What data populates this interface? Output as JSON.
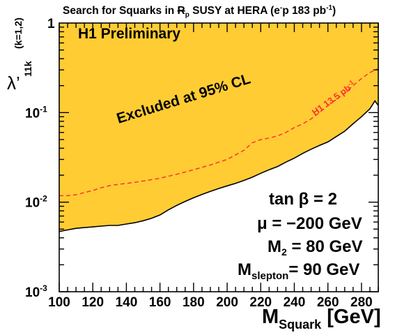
{
  "chart_data": {
    "type": "area",
    "title": {
      "prefix": "Search for Squarks in ",
      "rp_main": "R",
      "rp_sub": "p",
      "middle": " SUSY at HERA (e",
      "minus": "-",
      "after": "p 183 pb",
      "exp": "-1",
      "close": ")"
    },
    "xlabel": {
      "main": "M",
      "sub": "Squark",
      "unit": " [GeV]"
    },
    "ylabel": {
      "main": "λ’",
      "sub": "11k",
      "super": "(k=1,2)"
    },
    "xlim": [
      100,
      290
    ],
    "ylim": [
      0.001,
      1
    ],
    "yscale": "log",
    "x_ticks": [
      100,
      120,
      140,
      160,
      180,
      200,
      220,
      240,
      260,
      280
    ],
    "y_ticks": [
      {
        "value": 0.001,
        "base": "10",
        "exp": "-3"
      },
      {
        "value": 0.01,
        "base": "10",
        "exp": "-2"
      },
      {
        "value": 0.1,
        "base": "10",
        "exp": "-1"
      },
      {
        "value": 1,
        "base": "1",
        "exp": ""
      }
    ],
    "series": [
      {
        "name": "Excluded at 95% CL",
        "style": "filled-region-above",
        "color": "#ffcc33",
        "x": [
          100,
          105,
          110,
          115,
          120,
          125,
          130,
          135,
          140,
          145,
          150,
          155,
          160,
          165,
          170,
          175,
          180,
          185,
          190,
          195,
          200,
          205,
          210,
          215,
          220,
          225,
          230,
          235,
          240,
          245,
          250,
          255,
          260,
          265,
          270,
          275,
          280,
          285,
          288,
          290
        ],
        "y": [
          0.0047,
          0.0049,
          0.0051,
          0.0052,
          0.0053,
          0.0054,
          0.0055,
          0.0055,
          0.0057,
          0.0059,
          0.0062,
          0.0066,
          0.0072,
          0.0082,
          0.0092,
          0.0102,
          0.0112,
          0.0122,
          0.0132,
          0.0142,
          0.0152,
          0.0162,
          0.0175,
          0.019,
          0.021,
          0.023,
          0.025,
          0.028,
          0.031,
          0.035,
          0.039,
          0.043,
          0.047,
          0.054,
          0.062,
          0.075,
          0.09,
          0.11,
          0.135,
          0.12
        ]
      },
      {
        "name": "H1 13.5 pb",
        "name_exp": "-1",
        "style": "dashed",
        "color": "#ff3333",
        "x": [
          100,
          105,
          110,
          115,
          120,
          125,
          130,
          135,
          140,
          150,
          160,
          170,
          180,
          190,
          200,
          210,
          215,
          220,
          225,
          230,
          235,
          240,
          245,
          250,
          255,
          260,
          265,
          270,
          275,
          280,
          285,
          290
        ],
        "y": [
          0.0118,
          0.0118,
          0.0121,
          0.0128,
          0.0135,
          0.0145,
          0.0153,
          0.0158,
          0.0162,
          0.0172,
          0.0185,
          0.0205,
          0.023,
          0.026,
          0.03,
          0.038,
          0.046,
          0.05,
          0.052,
          0.055,
          0.06,
          0.068,
          0.075,
          0.085,
          0.1,
          0.12,
          0.14,
          0.165,
          0.2,
          0.24,
          0.28,
          0.31
        ]
      }
    ],
    "annotations": {
      "preliminary": "H1 Preliminary",
      "excluded": "Excluded at 95% CL",
      "h1_label": "H1 13.5 pb",
      "h1_label_exp": "-1",
      "params": {
        "tanb": "tan β = 2",
        "mu": "μ  = −200 GeV",
        "m2_main": "M",
        "m2_sub": "2",
        "m2_rest": " = 80 GeV",
        "msl_main": "M",
        "msl_sub": "slepton",
        "msl_rest": "= 90 GeV"
      }
    },
    "grid": false,
    "legend": "none"
  }
}
